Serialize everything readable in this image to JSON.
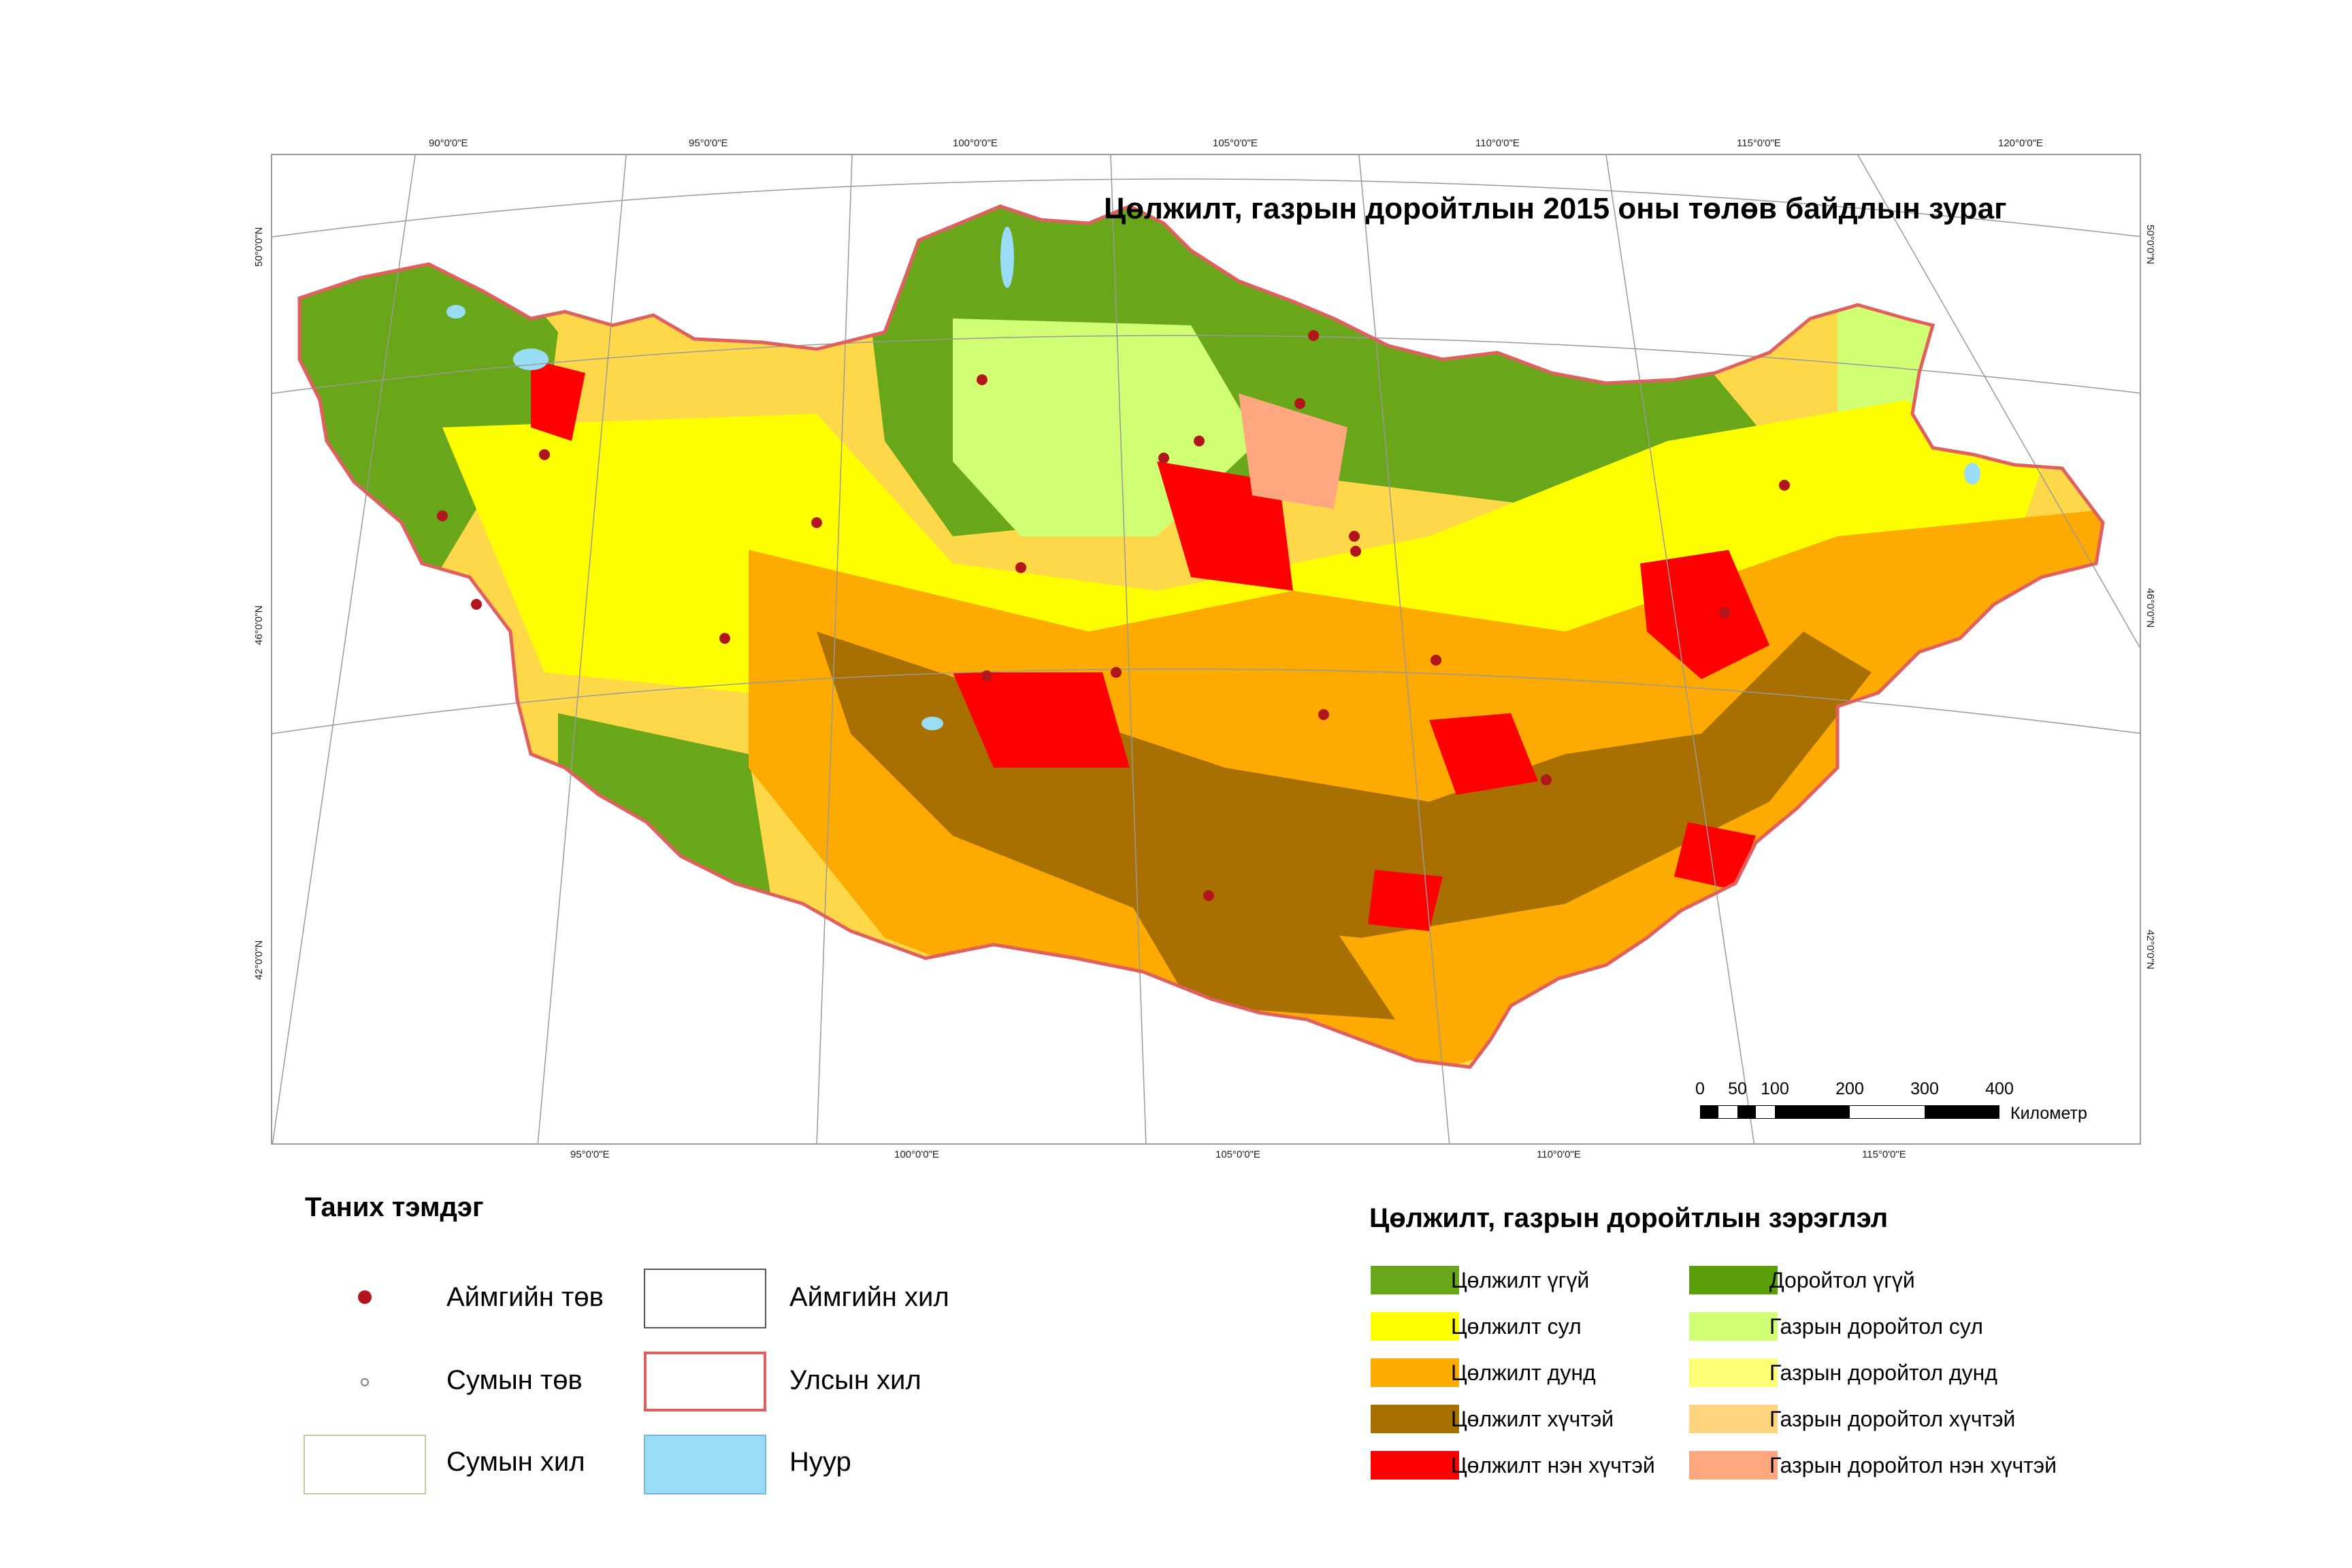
{
  "map": {
    "title": "Цөлжилт, газрын доройтлын 2015 оны төлөв байдлын зураг",
    "top_longitudes": [
      "90°0'0\"E",
      "95°0'0\"E",
      "100°0'0\"E",
      "105°0'0\"E",
      "110°0'0\"E",
      "115°0'0\"E",
      "120°0'0\"E"
    ],
    "bottom_longitudes": [
      "95°0'0\"E",
      "100°0'0\"E",
      "105°0'0\"E",
      "110°0'0\"E",
      "115°0'0\"E"
    ],
    "left_latitudes": [
      "50°0'0\"N",
      "46°0'0\"N",
      "42°0'0\"N"
    ],
    "right_latitudes": [
      "50°0'0\"N",
      "46°0'0\"N",
      "42°0'0\"N"
    ],
    "scale": {
      "ticks": [
        "0",
        "50",
        "100",
        "200",
        "300",
        "400"
      ],
      "unit": "Километр"
    }
  },
  "legend_symbols": {
    "heading": "Таних тэмдэг",
    "items": [
      {
        "label": "Аймгийн төв",
        "symbol": "aimag-center-dot-icon"
      },
      {
        "label": "Сумын төв",
        "symbol": "sum-center-circle-icon"
      },
      {
        "label": "Сумын хил",
        "symbol": "sum-boundary-box"
      },
      {
        "label": "Аймгийн хил",
        "symbol": "aimag-boundary-box"
      },
      {
        "label": "Улсын хил",
        "symbol": "national-boundary-box"
      },
      {
        "label": "Нуур",
        "symbol": "lake-box"
      }
    ]
  },
  "legend_classes": {
    "heading": "Цөлжилт, газрын доройтлын зэрэглэл",
    "desertification": [
      {
        "label": "Цөлжилт үгүй",
        "color": "#6aa61a"
      },
      {
        "label": "Цөлжилт сул",
        "color": "#ffff00"
      },
      {
        "label": "Цөлжилт дунд",
        "color": "#ffaa00"
      },
      {
        "label": "Цөлжилт хүчтэй",
        "color": "#a87000"
      },
      {
        "label": "Цөлжилт нэн хүчтэй",
        "color": "#ff0000"
      }
    ],
    "degradation": [
      {
        "label": "Доройтол үгүй",
        "color": "#5a9e0a"
      },
      {
        "label": "Газрын доройтол сул",
        "color": "#d1ff73"
      },
      {
        "label": "Газрын доройтол дунд",
        "color": "#ffff73"
      },
      {
        "label": "Газрын доройтол хүчтэй",
        "color": "#ffd37f"
      },
      {
        "label": "Газрын доройтол нэн хүчтэй",
        "color": "#ffa77f"
      }
    ]
  },
  "colors": {
    "national_border": "#e06060",
    "lake": "#99dcf5",
    "aimag_center": "#b0161b",
    "sum_boundary": "#c8c8a0"
  }
}
